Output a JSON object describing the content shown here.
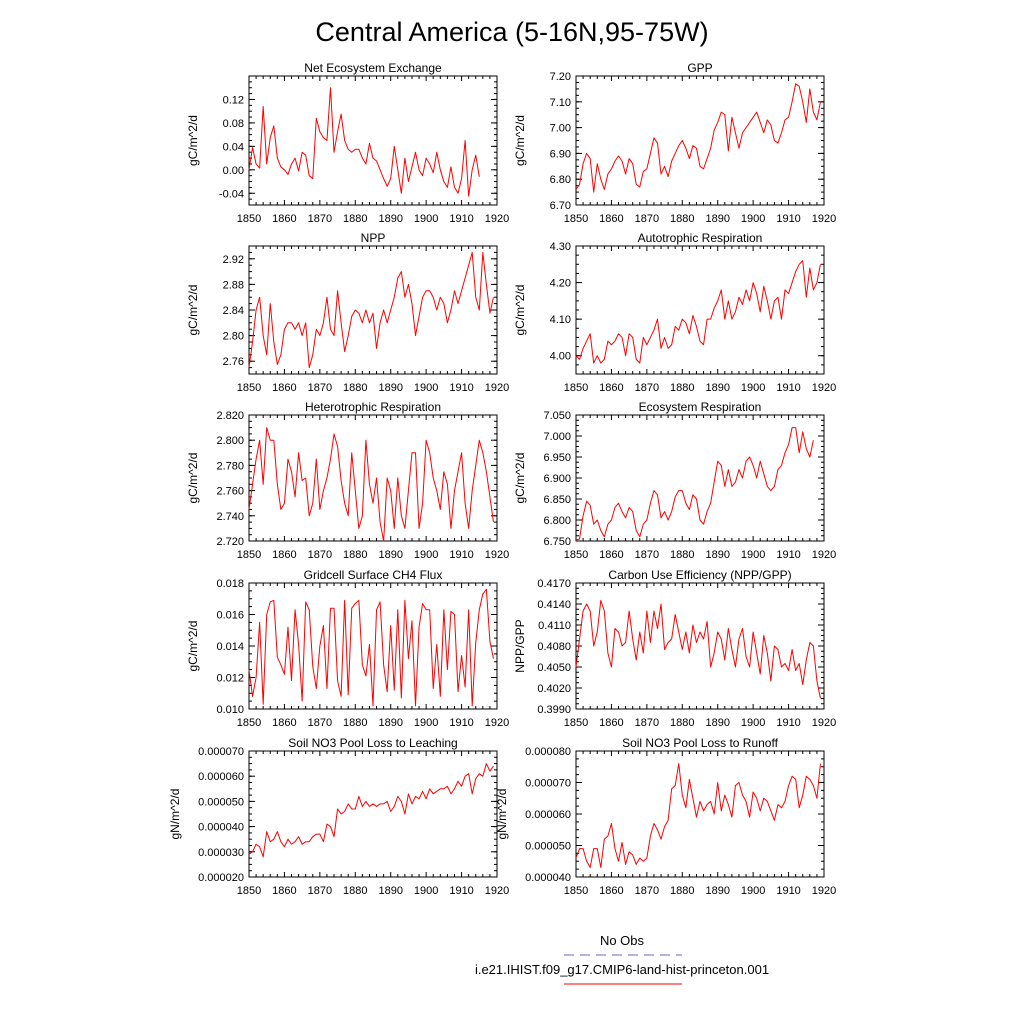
{
  "title": "Central America (5-16N,95-75W)",
  "colors": {
    "model": "#ff0000",
    "obs": "#6666cc",
    "axis": "#000000"
  },
  "legend": {
    "obs_label": "No Obs",
    "model_label": "i.e21.IHIST.f09_g17.CMIP6-land-hist-princeton.001"
  },
  "chart_data": [
    {
      "type": "line",
      "title": "Net Ecosystem Exchange",
      "ylabel": "gC/m^2/d",
      "xlim": [
        1850,
        1920
      ],
      "ylim": [
        -0.06,
        0.16
      ],
      "xticks": [
        1850,
        1860,
        1870,
        1880,
        1890,
        1900,
        1910,
        1920
      ],
      "xtick_labels": [
        "1850",
        "1860",
        "1870",
        "1880",
        "1890",
        "1900",
        "1910",
        "1920"
      ],
      "yticks": [
        -0.04,
        0.0,
        0.04,
        0.08,
        0.12
      ],
      "ytick_labels": [
        "-0.04",
        "0.00",
        "0.04",
        "0.08",
        "0.12"
      ],
      "x_start": 1850,
      "values": [
        0.0,
        0.038,
        0.01,
        0.003,
        0.108,
        0.01,
        0.055,
        0.075,
        0.02,
        0.005,
        0.0,
        -0.008,
        0.01,
        0.02,
        -0.002,
        0.03,
        0.025,
        -0.01,
        -0.015,
        0.088,
        0.065,
        0.055,
        0.05,
        0.14,
        0.03,
        0.065,
        0.095,
        0.05,
        0.035,
        0.03,
        0.035,
        0.035,
        0.02,
        0.01,
        0.045,
        0.02,
        0.015,
        0.0,
        -0.015,
        -0.028,
        -0.015,
        0.04,
        0.0,
        -0.04,
        0.02,
        -0.02,
        0.005,
        0.03,
        0.0,
        -0.01,
        0.02,
        0.01,
        -0.005,
        0.03,
        0.0,
        -0.02,
        -0.03,
        0.005,
        -0.03,
        -0.04,
        -0.015,
        0.05,
        -0.045,
        0.0,
        0.025,
        -0.012
      ]
    },
    {
      "type": "line",
      "title": "GPP",
      "ylabel": "gC/m^2/d",
      "xlim": [
        1850,
        1920
      ],
      "ylim": [
        6.7,
        7.2
      ],
      "xticks": [
        1850,
        1860,
        1870,
        1880,
        1890,
        1900,
        1910,
        1920
      ],
      "xtick_labels": [
        "1850",
        "1860",
        "1870",
        "1880",
        "1890",
        "1900",
        "1910",
        "1920"
      ],
      "yticks": [
        6.7,
        6.8,
        6.9,
        7.0,
        7.1,
        7.2
      ],
      "ytick_labels": [
        "6.70",
        "6.80",
        "6.90",
        "7.00",
        "7.10",
        "7.20"
      ],
      "x_start": 1850,
      "values": [
        6.76,
        6.78,
        6.86,
        6.9,
        6.88,
        6.75,
        6.86,
        6.8,
        6.76,
        6.82,
        6.84,
        6.87,
        6.89,
        6.87,
        6.82,
        6.88,
        6.86,
        6.78,
        6.77,
        6.83,
        6.84,
        6.9,
        6.96,
        6.94,
        6.82,
        6.85,
        6.81,
        6.87,
        6.9,
        6.93,
        6.95,
        6.92,
        6.88,
        6.93,
        6.92,
        6.85,
        6.84,
        6.88,
        6.92,
        6.99,
        7.02,
        7.06,
        7.05,
        6.91,
        7.04,
        6.98,
        6.92,
        6.98,
        7.0,
        7.02,
        7.04,
        7.06,
        7.02,
        6.98,
        7.03,
        7.01,
        6.95,
        6.94,
        6.98,
        7.03,
        7.04,
        7.1,
        7.17,
        7.16,
        7.1,
        7.02,
        7.15,
        7.06,
        7.03,
        7.1
      ]
    },
    {
      "type": "line",
      "title": "NPP",
      "ylabel": "gC/m^2/d",
      "xlim": [
        1850,
        1920
      ],
      "ylim": [
        2.74,
        2.94
      ],
      "xticks": [
        1850,
        1860,
        1870,
        1880,
        1890,
        1900,
        1910,
        1920
      ],
      "xtick_labels": [
        "1850",
        "1860",
        "1870",
        "1880",
        "1890",
        "1900",
        "1910",
        "1920"
      ],
      "yticks": [
        2.76,
        2.8,
        2.84,
        2.88,
        2.92
      ],
      "ytick_labels": [
        "2.76",
        "2.80",
        "2.84",
        "2.88",
        "2.92"
      ],
      "x_start": 1850,
      "values": [
        2.75,
        2.79,
        2.84,
        2.86,
        2.8,
        2.77,
        2.85,
        2.79,
        2.755,
        2.77,
        2.81,
        2.82,
        2.82,
        2.81,
        2.82,
        2.8,
        2.82,
        2.75,
        2.77,
        2.81,
        2.8,
        2.82,
        2.86,
        2.81,
        2.8,
        2.87,
        2.82,
        2.775,
        2.8,
        2.83,
        2.84,
        2.835,
        2.82,
        2.84,
        2.82,
        2.835,
        2.78,
        2.82,
        2.84,
        2.82,
        2.84,
        2.86,
        2.89,
        2.9,
        2.86,
        2.88,
        2.85,
        2.8,
        2.83,
        2.86,
        2.87,
        2.87,
        2.86,
        2.84,
        2.86,
        2.85,
        2.82,
        2.84,
        2.87,
        2.85,
        2.87,
        2.89,
        2.91,
        2.93,
        2.86,
        2.84,
        2.93,
        2.88,
        2.835,
        2.86
      ]
    },
    {
      "type": "line",
      "title": "Autotrophic Respiration",
      "ylabel": "gC/m^2/d",
      "xlim": [
        1850,
        1920
      ],
      "ylim": [
        3.95,
        4.3
      ],
      "xticks": [
        1850,
        1860,
        1870,
        1880,
        1890,
        1900,
        1910,
        1920
      ],
      "xtick_labels": [
        "1850",
        "1860",
        "1870",
        "1880",
        "1890",
        "1900",
        "1910",
        "1920"
      ],
      "yticks": [
        4.0,
        4.1,
        4.2,
        4.3
      ],
      "ytick_labels": [
        "4.00",
        "4.10",
        "4.20",
        "4.30"
      ],
      "x_start": 1850,
      "values": [
        4.0,
        3.99,
        4.02,
        4.04,
        4.06,
        3.98,
        4.0,
        3.98,
        3.99,
        4.04,
        4.03,
        4.04,
        4.06,
        4.05,
        4.0,
        4.06,
        4.05,
        3.99,
        3.98,
        4.05,
        4.03,
        4.05,
        4.07,
        4.1,
        4.02,
        4.05,
        4.02,
        4.03,
        4.08,
        4.07,
        4.1,
        4.09,
        4.06,
        4.11,
        4.08,
        4.04,
        4.03,
        4.1,
        4.1,
        4.13,
        4.15,
        4.18,
        4.1,
        4.15,
        4.1,
        4.12,
        4.16,
        4.14,
        4.18,
        4.15,
        4.2,
        4.17,
        4.12,
        4.19,
        4.15,
        4.1,
        4.15,
        4.16,
        4.1,
        4.18,
        4.17,
        4.2,
        4.23,
        4.25,
        4.26,
        4.16,
        4.24,
        4.18,
        4.2,
        4.25
      ]
    },
    {
      "type": "line",
      "title": "Heterotrophic Respiration",
      "ylabel": "gC/m^2/d",
      "xlim": [
        1850,
        1920
      ],
      "ylim": [
        2.72,
        2.82
      ],
      "xticks": [
        1850,
        1860,
        1870,
        1880,
        1890,
        1900,
        1910,
        1920
      ],
      "xtick_labels": [
        "1850",
        "1860",
        "1870",
        "1880",
        "1890",
        "1900",
        "1910",
        "1920"
      ],
      "yticks": [
        2.72,
        2.74,
        2.76,
        2.78,
        2.8,
        2.82
      ],
      "ytick_labels": [
        "2.720",
        "2.740",
        "2.760",
        "2.780",
        "2.800",
        "2.820"
      ],
      "x_start": 1850,
      "values": [
        2.745,
        2.765,
        2.785,
        2.8,
        2.765,
        2.81,
        2.8,
        2.8,
        2.765,
        2.745,
        2.75,
        2.785,
        2.775,
        2.755,
        2.79,
        2.768,
        2.77,
        2.74,
        2.75,
        2.785,
        2.745,
        2.76,
        2.77,
        2.785,
        2.805,
        2.795,
        2.768,
        2.75,
        2.74,
        2.79,
        2.76,
        2.73,
        2.74,
        2.8,
        2.765,
        2.75,
        2.77,
        2.735,
        2.72,
        2.77,
        2.76,
        2.73,
        2.77,
        2.74,
        2.73,
        2.76,
        2.79,
        2.79,
        2.73,
        2.75,
        2.8,
        2.79,
        2.77,
        2.76,
        2.745,
        2.775,
        2.765,
        2.73,
        2.76,
        2.775,
        2.79,
        2.75,
        2.73,
        2.76,
        2.78,
        2.8,
        2.79,
        2.775,
        2.755,
        2.735
      ]
    },
    {
      "type": "line",
      "title": "Ecosystem Respiration",
      "ylabel": "gC/m^2/d",
      "xlim": [
        1850,
        1920
      ],
      "ylim": [
        6.75,
        7.05
      ],
      "xticks": [
        1850,
        1860,
        1870,
        1880,
        1890,
        1900,
        1910,
        1920
      ],
      "xtick_labels": [
        "1850",
        "1860",
        "1870",
        "1880",
        "1890",
        "1900",
        "1910",
        "1920"
      ],
      "yticks": [
        6.75,
        6.8,
        6.85,
        6.9,
        6.95,
        7.0,
        7.05
      ],
      "ytick_labels": [
        "6.750",
        "6.800",
        "6.850",
        "6.900",
        "6.950",
        "7.000",
        "7.050"
      ],
      "x_start": 1850,
      "values": [
        6.752,
        6.755,
        6.81,
        6.845,
        6.835,
        6.79,
        6.8,
        6.775,
        6.76,
        6.79,
        6.8,
        6.83,
        6.84,
        6.82,
        6.805,
        6.83,
        6.82,
        6.775,
        6.76,
        6.79,
        6.8,
        6.84,
        6.87,
        6.86,
        6.805,
        6.82,
        6.8,
        6.82,
        6.855,
        6.87,
        6.87,
        6.84,
        6.825,
        6.86,
        6.85,
        6.8,
        6.79,
        6.82,
        6.84,
        6.89,
        6.94,
        6.93,
        6.88,
        6.92,
        6.88,
        6.89,
        6.92,
        6.9,
        6.94,
        6.95,
        6.93,
        6.9,
        6.94,
        6.91,
        6.88,
        6.87,
        6.88,
        6.92,
        6.93,
        6.96,
        6.98,
        7.02,
        7.02,
        6.96,
        7.01,
        6.97,
        6.95,
        6.99
      ]
    },
    {
      "type": "line",
      "title": "Gridcell Surface CH4 Flux",
      "ylabel": "gC/m^2/d",
      "xlim": [
        1850,
        1920
      ],
      "ylim": [
        0.01,
        0.018
      ],
      "xticks": [
        1850,
        1860,
        1870,
        1880,
        1890,
        1900,
        1910,
        1920
      ],
      "xtick_labels": [
        "1850",
        "1860",
        "1870",
        "1880",
        "1890",
        "1900",
        "1910",
        "1920"
      ],
      "yticks": [
        0.01,
        0.012,
        0.014,
        0.016,
        0.018
      ],
      "ytick_labels": [
        "0.010",
        "0.012",
        "0.014",
        "0.016",
        "0.018"
      ],
      "x_start": 1850,
      "values": [
        0.0125,
        0.0108,
        0.012,
        0.0155,
        0.0103,
        0.016,
        0.0168,
        0.0169,
        0.0133,
        0.0128,
        0.0122,
        0.0152,
        0.0118,
        0.0163,
        0.0141,
        0.0105,
        0.0168,
        0.0163,
        0.0127,
        0.0113,
        0.014,
        0.0153,
        0.0113,
        0.0164,
        0.0164,
        0.0118,
        0.0108,
        0.0169,
        0.0109,
        0.0164,
        0.0167,
        0.0169,
        0.0128,
        0.0121,
        0.0141,
        0.0102,
        0.0163,
        0.0168,
        0.0128,
        0.0111,
        0.0153,
        0.0112,
        0.0163,
        0.0107,
        0.0169,
        0.0132,
        0.0156,
        0.0102,
        0.0152,
        0.0167,
        0.0163,
        0.0163,
        0.0113,
        0.0141,
        0.0108,
        0.0163,
        0.0125,
        0.0162,
        0.016,
        0.0111,
        0.0134,
        0.0114,
        0.0163,
        0.0102,
        0.0142,
        0.0163,
        0.0173,
        0.0176,
        0.0143,
        0.0132
      ]
    },
    {
      "type": "line",
      "title": "Carbon Use Efficiency (NPP/GPP)",
      "ylabel": "NPP/GPP",
      "xlim": [
        1850,
        1920
      ],
      "ylim": [
        0.399,
        0.417
      ],
      "xticks": [
        1850,
        1860,
        1870,
        1880,
        1890,
        1900,
        1910,
        1920
      ],
      "xtick_labels": [
        "1850",
        "1860",
        "1870",
        "1880",
        "1890",
        "1900",
        "1910",
        "1920"
      ],
      "yticks": [
        0.399,
        0.402,
        0.405,
        0.408,
        0.411,
        0.414,
        0.417
      ],
      "ytick_labels": [
        "0.3990",
        "0.4020",
        "0.4050",
        "0.4080",
        "0.4110",
        "0.4140",
        "0.4170"
      ],
      "x_start": 1850,
      "values": [
        0.405,
        0.409,
        0.413,
        0.414,
        0.413,
        0.408,
        0.41,
        0.4145,
        0.413,
        0.407,
        0.405,
        0.4105,
        0.41,
        0.408,
        0.4085,
        0.413,
        0.409,
        0.406,
        0.41,
        0.407,
        0.413,
        0.4085,
        0.413,
        0.4105,
        0.414,
        0.4075,
        0.4085,
        0.409,
        0.4125,
        0.41,
        0.4075,
        0.41,
        0.407,
        0.411,
        0.4085,
        0.41,
        0.409,
        0.4115,
        0.405,
        0.407,
        0.41,
        0.409,
        0.406,
        0.4105,
        0.4075,
        0.405,
        0.409,
        0.4105,
        0.4065,
        0.405,
        0.41,
        0.407,
        0.404,
        0.4095,
        0.407,
        0.403,
        0.408,
        0.4075,
        0.405,
        0.4055,
        0.4045,
        0.4075,
        0.4045,
        0.4055,
        0.4025,
        0.406,
        0.4085,
        0.408,
        0.403,
        0.4005
      ]
    },
    {
      "type": "line",
      "title": "Soil NO3 Pool Loss to Leaching",
      "ylabel": "gN/m^2/d",
      "xlim": [
        1850,
        1920
      ],
      "ylim": [
        2e-05,
        7e-05
      ],
      "xticks": [
        1850,
        1860,
        1870,
        1880,
        1890,
        1900,
        1910,
        1920
      ],
      "xtick_labels": [
        "1850",
        "1860",
        "1870",
        "1880",
        "1890",
        "1900",
        "1910",
        "1920"
      ],
      "yticks": [
        2e-05,
        3e-05,
        4e-05,
        5e-05,
        6e-05,
        7e-05
      ],
      "ytick_labels": [
        "0.000020",
        "0.000030",
        "0.000040",
        "0.000050",
        "0.000060",
        "0.000070"
      ],
      "x_start": 1850,
      "values": [
        2.9e-05,
        3e-05,
        3.3e-05,
        3.2e-05,
        2.8e-05,
        3.8e-05,
        3.4e-05,
        3.5e-05,
        3.8e-05,
        3.4e-05,
        3.2e-05,
        3.5e-05,
        3.3e-05,
        3.4e-05,
        3.6e-05,
        3.3e-05,
        3.4e-05,
        3.4e-05,
        3.6e-05,
        3.7e-05,
        3.7e-05,
        3.4e-05,
        4.1e-05,
        4e-05,
        3.6e-05,
        4.7e-05,
        4.5e-05,
        4.6e-05,
        4.9e-05,
        4.7e-05,
        4.7e-05,
        5.2e-05,
        4.8e-05,
        5e-05,
        4.8e-05,
        4.9e-05,
        4.8e-05,
        4.9e-05,
        4.9e-05,
        5e-05,
        4.6e-05,
        4.8e-05,
        5.2e-05,
        5e-05,
        4.5e-05,
        5.3e-05,
        4.9e-05,
        5.2e-05,
        5.1e-05,
        5.4e-05,
        5.1e-05,
        5.5e-05,
        5.3e-05,
        5.4e-05,
        5.5e-05,
        5.5e-05,
        5.6e-05,
        5.3e-05,
        5.5e-05,
        5.8e-05,
        5.6e-05,
        6e-05,
        6.1e-05,
        5.3e-05,
        5.9e-05,
        6.1e-05,
        6e-05,
        6.5e-05,
        6.2e-05,
        6.4e-05
      ]
    },
    {
      "type": "line",
      "title": "Soil NO3 Pool Loss to Runoff",
      "ylabel": "gN/m^2/d",
      "xlim": [
        1850,
        1920
      ],
      "ylim": [
        4e-05,
        8e-05
      ],
      "xticks": [
        1850,
        1860,
        1870,
        1880,
        1890,
        1900,
        1910,
        1920
      ],
      "xtick_labels": [
        "1850",
        "1860",
        "1870",
        "1880",
        "1890",
        "1900",
        "1910",
        "1920"
      ],
      "yticks": [
        4e-05,
        5e-05,
        6e-05,
        7e-05,
        8e-05
      ],
      "ytick_labels": [
        "0.000040",
        "0.000050",
        "0.000060",
        "0.000070",
        "0.000080"
      ],
      "x_start": 1850,
      "values": [
        4.6e-05,
        4.9e-05,
        4.9e-05,
        4.5e-05,
        4.3e-05,
        4.9e-05,
        4.9e-05,
        4.3e-05,
        5.2e-05,
        5.3e-05,
        5.7e-05,
        4.9e-05,
        4.5e-05,
        5.1e-05,
        4.4e-05,
        4.8e-05,
        4.7e-05,
        4.4e-05,
        4.6e-05,
        4.5e-05,
        4.6e-05,
        5.3e-05,
        5.7e-05,
        5.5e-05,
        5.2e-05,
        5.6e-05,
        5.8e-05,
        6.8e-05,
        6.9e-05,
        7.6e-05,
        6.6e-05,
        6.2e-05,
        7.1e-05,
        6.5e-05,
        5.9e-05,
        6.4e-05,
        6.1e-05,
        6.3e-05,
        6.4e-05,
        6e-05,
        7e-05,
        6.1e-05,
        6.6e-05,
        6.3e-05,
        5.9e-05,
        6.9e-05,
        7e-05,
        6.6e-05,
        6.4e-05,
        5.9e-05,
        6.7e-05,
        6.5e-05,
        6.1e-05,
        6.5e-05,
        6.4e-05,
        6.1e-05,
        5.8e-05,
        6.3e-05,
        6.2e-05,
        6.4e-05,
        6.9e-05,
        7.2e-05,
        7.1e-05,
        6.2e-05,
        6.6e-05,
        7.2e-05,
        7.1e-05,
        6.9e-05,
        6.5e-05,
        7.6e-05
      ]
    }
  ]
}
